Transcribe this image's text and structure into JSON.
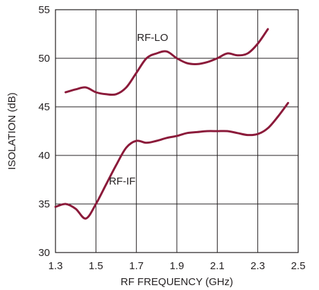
{
  "chart_data": {
    "type": "line",
    "title": "",
    "xlabel": "RF FREQUENCY (GHz)",
    "ylabel": "ISOLATION (dB)",
    "xlim": [
      1.3,
      2.5
    ],
    "ylim": [
      30,
      55
    ],
    "x_ticks": [
      1.3,
      1.5,
      1.7,
      1.9,
      2.1,
      2.3,
      2.5
    ],
    "x_tick_labels": [
      "1.3",
      "1.5",
      "1.7",
      "1.9",
      "2.1",
      "2.3",
      "2.5"
    ],
    "y_ticks": [
      30,
      35,
      40,
      45,
      50,
      55
    ],
    "y_tick_labels": [
      "30",
      "35",
      "40",
      "45",
      "50",
      "55"
    ],
    "grid": true,
    "line_color": "#8b1a3a",
    "series": [
      {
        "name": "RF-LO",
        "x": [
          1.35,
          1.4,
          1.45,
          1.5,
          1.55,
          1.6,
          1.65,
          1.7,
          1.75,
          1.8,
          1.85,
          1.9,
          1.95,
          2.0,
          2.05,
          2.1,
          2.15,
          2.2,
          2.25,
          2.3,
          2.35
        ],
        "y": [
          46.5,
          46.8,
          47.0,
          46.5,
          46.3,
          46.3,
          47.0,
          48.5,
          50.0,
          50.5,
          50.7,
          50.0,
          49.5,
          49.4,
          49.6,
          50.0,
          50.5,
          50.3,
          50.5,
          51.5,
          53.0
        ]
      },
      {
        "name": "RF-IF",
        "x": [
          1.3,
          1.35,
          1.4,
          1.45,
          1.5,
          1.55,
          1.6,
          1.65,
          1.7,
          1.75,
          1.8,
          1.85,
          1.9,
          1.95,
          2.0,
          2.05,
          2.1,
          2.15,
          2.2,
          2.25,
          2.3,
          2.35,
          2.4,
          2.45
        ],
        "y": [
          34.7,
          35.0,
          34.5,
          33.5,
          35.0,
          37.0,
          39.0,
          40.8,
          41.5,
          41.3,
          41.5,
          41.8,
          42.0,
          42.3,
          42.4,
          42.5,
          42.5,
          42.5,
          42.3,
          42.1,
          42.2,
          42.8,
          44.0,
          45.4
        ]
      }
    ],
    "series_labels": [
      {
        "text": "RF-LO",
        "x": 1.78,
        "y": 51.8
      },
      {
        "text": "RF-IF",
        "x": 1.63,
        "y": 37.0
      }
    ]
  }
}
